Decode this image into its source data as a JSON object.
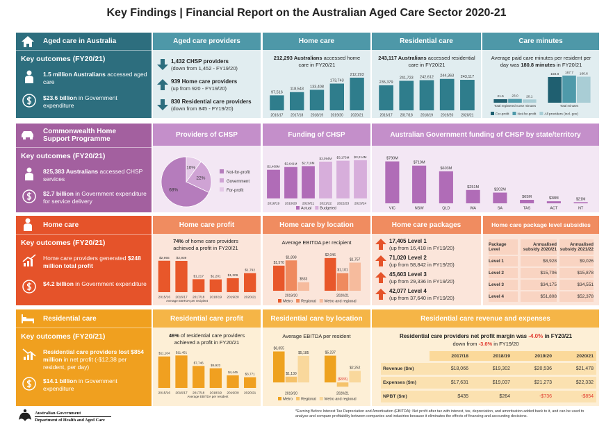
{
  "title": "Key Findings | Financial Report on the Australian Aged Care Sector 2020-21",
  "aged_care": {
    "heading": "Aged care in Australia",
    "outcomes_title": "Key outcomes (FY20/21)",
    "outcomes": [
      {
        "bold": "1.5 million Australians",
        "post": " accessed aged care"
      },
      {
        "bold": "$23.6 billion",
        "post": " in Government expenditure"
      }
    ]
  },
  "providers": {
    "heading": "Aged care providers",
    "items": [
      {
        "trend": "down",
        "bold": "1,432 CHSP providers",
        "sub": "(down from 1,452 - FY19/20)"
      },
      {
        "trend": "up",
        "bold": "939 Home care providers",
        "sub": "(up from 920 - FY19/20)"
      },
      {
        "trend": "down",
        "bold": "830 Residential care providers",
        "sub": "(down from 845 - FY19/20)"
      }
    ]
  },
  "home_care": {
    "heading": "Home care",
    "headline": {
      "bold": "212,293 Australians",
      "post": " accessed home care in FY20/21"
    },
    "chart": {
      "type": "bar",
      "categories": [
        "2016/17",
        "2017/18",
        "2018/19",
        "2019/20",
        "2020/21"
      ],
      "series": [
        {
          "color": "#2f7d8c",
          "values": [
            97516,
            118543,
            133408,
            173743,
            212293
          ],
          "value_labels": [
            "97,516",
            "118,543",
            "133,408",
            "173,743",
            "212,293"
          ]
        }
      ],
      "ylim": [
        0,
        230000
      ]
    }
  },
  "residential": {
    "heading": "Residential care",
    "headline": {
      "bold": "243,117 Australians",
      "post": " accessed residential care in FY20/21"
    },
    "chart": {
      "type": "bar",
      "categories": [
        "2016/17",
        "2017/18",
        "2018/19",
        "2019/20",
        "2020/21"
      ],
      "series": [
        {
          "color": "#2f7d8c",
          "values": [
            235379,
            241723,
            242612,
            244363,
            243117
          ],
          "value_labels": [
            "235,379",
            "241,723",
            "242,612",
            "244,363",
            "243,117"
          ]
        }
      ],
      "ylim": [
        200000,
        250000
      ]
    }
  },
  "care_minutes": {
    "heading": "Care minutes",
    "headline": {
      "pre": "Average paid care minutes per resident per day was ",
      "bold": "180.8 minutes",
      "post": " in FY20/21"
    },
    "chart": {
      "type": "bar",
      "categories": [
        "Total registered nurse minutes",
        "Total minutes"
      ],
      "series": [
        {
          "name": "For-profit",
          "color": "#1f5f70",
          "values": [
            21.5,
            158.8
          ]
        },
        {
          "name": "Not-for-profit",
          "color": "#4f9aaa",
          "values": [
            23.0,
            167.7
          ],
          "value_labels": [
            "23.0",
            "167.7"
          ]
        },
        {
          "name": "All providers (incl. gov)",
          "color": "#a9cdd5",
          "values": [
            20.1,
            160.6
          ]
        }
      ],
      "ylim": [
        0,
        180
      ]
    }
  },
  "chsp": {
    "heading": "Commonwealth Home Support Programme",
    "outcomes_title": "Key outcomes (FY20/21)",
    "outcomes": [
      {
        "bold": "825,383 Australians",
        "post": " accessed CHSP services"
      },
      {
        "bold": "$2.7 billion",
        "post": " in Government expenditure for service delivery"
      }
    ]
  },
  "chsp_providers": {
    "heading": "Providers of CHSP",
    "chart": {
      "type": "pie",
      "categories": [
        "Not-for-profit",
        "Government",
        "For-profit"
      ],
      "values": [
        68,
        22,
        10
      ],
      "value_labels": [
        "68%",
        "22%",
        "10%"
      ],
      "colors": [
        "#b57cbc",
        "#cfa3d4",
        "#e4c9e7"
      ]
    }
  },
  "chsp_funding": {
    "heading": "Funding of CHSP",
    "chart": {
      "type": "bar",
      "categories": [
        "2018/19",
        "2019/20",
        "2020/21",
        "2021/22",
        "2022/23",
        "2023/24"
      ],
      "series": [
        {
          "name": "Actual",
          "color": "#b06cb7",
          "values": [
            2409,
            2641,
            2718,
            null,
            null,
            null
          ],
          "value_labels": [
            "$2,409M",
            "$2,641M",
            "$2,718M",
            null,
            null,
            null
          ]
        },
        {
          "name": "Budgeted",
          "color": "#d7aedb",
          "values": [
            null,
            null,
            null,
            3094,
            3173,
            3214
          ],
          "value_labels": [
            null,
            null,
            null,
            "$3,094M",
            "$3,173M",
            "$3,214M"
          ]
        }
      ],
      "ylim": [
        0,
        3500
      ]
    }
  },
  "chsp_states": {
    "heading": "Australian Government funding of CHSP by state/territory",
    "chart": {
      "type": "bar",
      "categories": [
        "VIC",
        "NSW",
        "QLD",
        "WA",
        "SA",
        "TAS",
        "ACT",
        "NT"
      ],
      "series": [
        {
          "color": "#b06cb7",
          "values": [
            790,
            710,
            603,
            251,
            202,
            65,
            38,
            21
          ],
          "value_labels": [
            "$790M",
            "$710M",
            "$603M",
            "$251M",
            "$202M",
            "$65M",
            "$38M",
            "$21M"
          ]
        }
      ],
      "ylim": [
        0,
        850
      ]
    }
  },
  "hc": {
    "heading": "Home care",
    "outcomes_title": "Key outcomes (FY20/21)",
    "outcomes": [
      {
        "pre": "Home care providers generated ",
        "bold": "$248 million total profit"
      },
      {
        "bold": "$4.2 billion",
        "post": " in Government expenditure"
      }
    ]
  },
  "hc_profit": {
    "heading": "Home care profit",
    "headline": {
      "bold": "74%",
      "post": " of home care providers achieved a profit in FY20/21"
    },
    "note": "Average EBITDA per recipient",
    "chart": {
      "type": "bar",
      "categories": [
        "2015/16",
        "2016/17",
        "2017/18",
        "2018/19",
        "2019/20",
        "2020/21"
      ],
      "series": [
        {
          "color": "#e8572a",
          "values": [
            2955,
            2939,
            1217,
            1201,
            1309,
            1792
          ],
          "value_labels": [
            "$2,955",
            "$2,939",
            "$1,217",
            "$1,201",
            "$1,309",
            "$1,792"
          ]
        }
      ],
      "ylim": [
        0,
        3200
      ]
    }
  },
  "hc_location": {
    "heading": "Home care by location",
    "headline": {
      "pre": "Average EBITDA per recipient"
    },
    "chart": {
      "type": "bar",
      "categories": [
        "2019/20",
        "2020/21"
      ],
      "series": [
        {
          "name": "Metro",
          "color": "#e8572a",
          "values": [
            1570,
            2046
          ],
          "value_labels": [
            "$1,570",
            "$2,046"
          ]
        },
        {
          "name": "Regional",
          "color": "#ef8a5e",
          "values": [
            1898,
            1101
          ],
          "value_labels": [
            "$1,898",
            "$1,101"
          ]
        },
        {
          "name": "Metro and regional",
          "color": "#f6bb9d",
          "values": [
            533,
            1757
          ],
          "value_labels": [
            "$533",
            "$1,757"
          ]
        }
      ],
      "ylim": [
        0,
        2300
      ]
    }
  },
  "hc_packages": {
    "heading": "Home care packages",
    "items": [
      {
        "trend": "up",
        "bold": "17,405 Level 1",
        "sub": "(up from 16,418 in FY19/20)"
      },
      {
        "trend": "up",
        "bold": "71,020 Level 2",
        "sub": "(up from 58,842 in FY19/20)"
      },
      {
        "trend": "up",
        "bold": "45,603 Level 3",
        "sub": "(up from 29,336 in FY19/20)"
      },
      {
        "trend": "up",
        "bold": "42,077 Level 4",
        "sub": "(up from 37,640 in FY19/20)"
      }
    ]
  },
  "hc_subsidies": {
    "heading": "Home care package level subsidies",
    "columns": [
      "Package Level",
      "Annualised subsidy 2020/21",
      "Annualised subsidy 2021/22"
    ],
    "rows": [
      [
        "Level 1",
        "$8,928",
        "$9,026"
      ],
      [
        "Level 2",
        "$15,706",
        "$15,878"
      ],
      [
        "Level 3",
        "$34,175",
        "$34,551"
      ],
      [
        "Level 4",
        "$51,808",
        "$52,378"
      ]
    ]
  },
  "rc": {
    "heading": "Residential care",
    "outcomes_title": "Key outcomes (FY20/21)",
    "outcomes": [
      {
        "bold": "Residential care providers lost $854 million",
        "post": " in net profit (-$12.38 per resident, per day)"
      },
      {
        "bold": "$14.1 billion",
        "post": " in Government expenditure"
      }
    ]
  },
  "rc_profit": {
    "heading": "Residential care profit",
    "headline": {
      "bold": "46%",
      "post": " of residential care providers achieved a profit in FY20/21"
    },
    "note": "Average EBITDA per resident",
    "chart": {
      "type": "bar",
      "categories": [
        "2015/16",
        "2016/17",
        "2017/18",
        "2018/19",
        "2019/20",
        "2020/21"
      ],
      "series": [
        {
          "color": "#f0a020",
          "values": [
            11104,
            11451,
            7746,
            6922,
            4445,
            3771
          ],
          "value_labels": [
            "$11,104",
            "$11,451",
            "$7,746",
            "$6,922",
            "$4,445",
            "$3,771"
          ]
        }
      ],
      "ylim": [
        0,
        12500
      ]
    }
  },
  "rc_location": {
    "heading": "Residential care by location",
    "headline": {
      "pre": "Average EBITDA per resident"
    },
    "chart": {
      "type": "bar",
      "categories": [
        "2019/20",
        "2020/21"
      ],
      "series": [
        {
          "name": "Metro",
          "color": "#eea21f",
          "values": [
            6055,
            5237
          ],
          "value_labels": [
            "$6,055",
            "$5,237"
          ]
        },
        {
          "name": "Regional",
          "color": "#f5c26a",
          "values": [
            1130,
            -835
          ],
          "value_labels": [
            "$1,130",
            "($835)"
          ]
        },
        {
          "name": "Metro and regional",
          "color": "#f9d89c",
          "values": [
            5185,
            2252
          ],
          "value_labels": [
            "$5,185",
            "$2,252"
          ]
        }
      ],
      "ylim": [
        -1200,
        6800
      ]
    }
  },
  "rc_revenue": {
    "heading": "Residential care revenue and expenses",
    "title": {
      "pre": "Residential care providers net profit margin was ",
      "red": "-4.0%",
      "post": " in FY20/21"
    },
    "subtitle": {
      "pre": "down from ",
      "red": "-3.6%",
      "post": " in FY19/20"
    },
    "columns": [
      "2017/18",
      "2018/19",
      "2019/20",
      "2020/21"
    ],
    "rows": [
      {
        "label": "Revenue ($m)",
        "values": [
          "$18,066",
          "$19,302",
          "$20,536",
          "$21,478"
        ]
      },
      {
        "label": "Expenses ($m)",
        "values": [
          "$17,631",
          "$19,037",
          "$21,273",
          "$22,332"
        ]
      },
      {
        "label": "NPBT ($m)",
        "values": [
          "$435",
          "$264",
          "-$736",
          "-$854"
        ]
      }
    ]
  },
  "footer": {
    "agency": "Australian Government",
    "department": "Department of Health and Aged Care",
    "footnote": "*Earning Before Interest Tax Depreciation and Amortisation (EBITDA): Net profit after tax with interest, tax, depreciation, and amortisation added back to it, and can be used to analyse and compare profitability between companies and industries because it eliminates the effects of financing and accounting decisions."
  }
}
